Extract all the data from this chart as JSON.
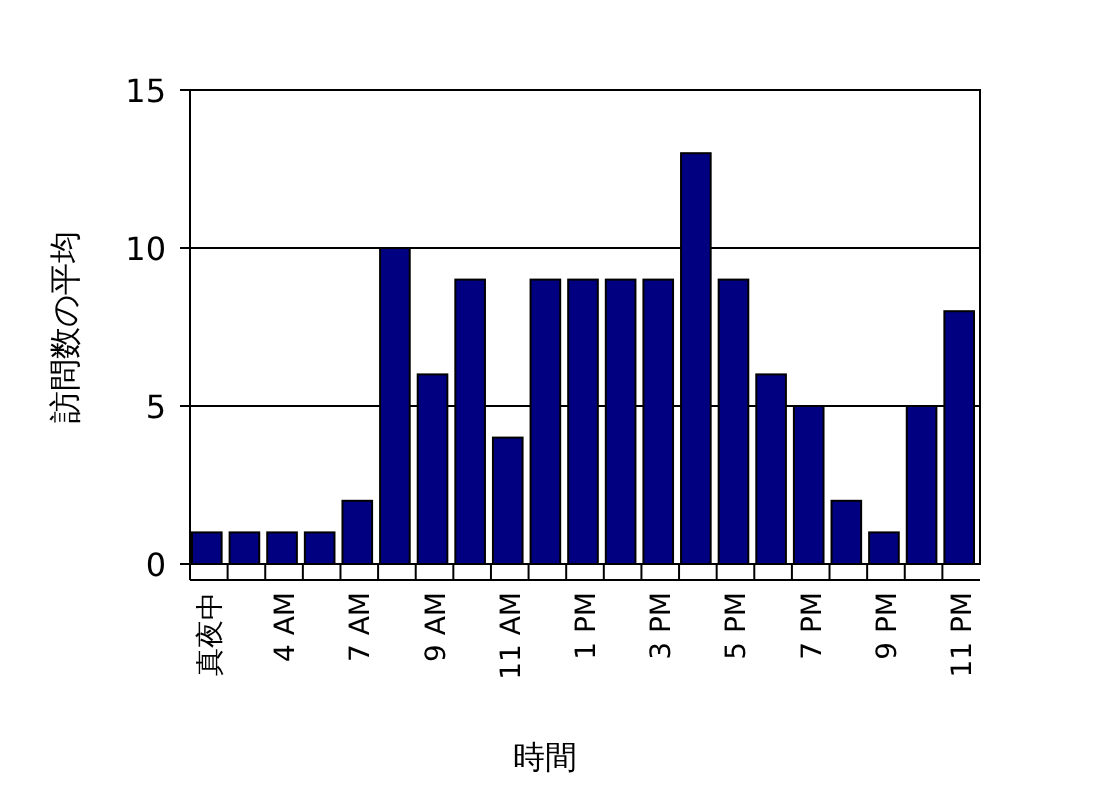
{
  "chart_data": {
    "type": "bar",
    "xlabel": "時間",
    "ylabel": "訪問数の平均",
    "categories": [
      "真夜中",
      null,
      "4 AM",
      null,
      "7 AM",
      null,
      "9 AM",
      null,
      "11 AM",
      null,
      "1 PM",
      null,
      "3 PM",
      null,
      "5 PM",
      null,
      "7 PM",
      null,
      "9 PM",
      null,
      "11 PM"
    ],
    "values": [
      1,
      1,
      1,
      1,
      2,
      10,
      6,
      9,
      4,
      9,
      9,
      9,
      9,
      13,
      9,
      6,
      5,
      2,
      1,
      5,
      8
    ],
    "color": "#000080",
    "ylim": [
      0,
      15
    ],
    "yticks": [
      0,
      5,
      10,
      15
    ],
    "grid": "y"
  }
}
